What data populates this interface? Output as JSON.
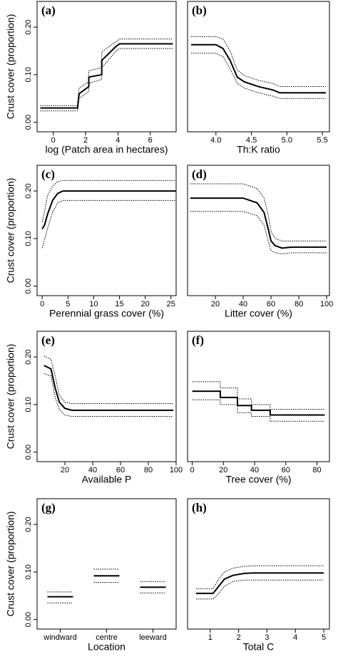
{
  "chart_data": [
    {
      "type": "line",
      "title": "(a)",
      "xlabel": "log (Patch area in hectares)",
      "ylabel": "Crust cover (proportion)",
      "xlim": [
        -1,
        7.6
      ],
      "xticks": [
        0,
        2,
        4,
        6
      ],
      "ylim": [
        -0.02,
        0.254
      ],
      "yticks": [
        {
          "value": 0,
          "label": "0.00"
        },
        {
          "value": 0.1,
          "label": "0.10"
        },
        {
          "value": 0.2,
          "label": "0.20"
        }
      ],
      "x": [
        -0.8,
        1.5,
        1.6,
        2.2,
        2.2,
        3.0,
        3.0,
        3.9,
        4.1,
        7.4
      ],
      "series": [
        {
          "color": "#000000",
          "style": "solid",
          "values": [
            0.03,
            0.03,
            0.06,
            0.075,
            0.095,
            0.1,
            0.13,
            0.16,
            0.165,
            0.165
          ]
        },
        {
          "color": "#000000",
          "style": "dotted",
          "values": [
            0.035,
            0.035,
            0.072,
            0.085,
            0.108,
            0.115,
            0.148,
            0.17,
            0.175,
            0.175
          ]
        },
        {
          "color": "#000000",
          "style": "dotted",
          "values": [
            0.024,
            0.024,
            0.05,
            0.065,
            0.082,
            0.09,
            0.115,
            0.15,
            0.155,
            0.155
          ]
        }
      ]
    },
    {
      "type": "line",
      "title": "(b)",
      "xlabel": "Th:K ratio",
      "xlim": [
        3.6,
        5.6
      ],
      "xticks": [
        {
          "value": 4,
          "label": "4.0"
        },
        4.5,
        {
          "value": 5,
          "label": "5.0"
        },
        5.5
      ],
      "ylim": [
        -0.02,
        0.254
      ],
      "x": [
        3.65,
        4.0,
        4.1,
        4.2,
        4.3,
        4.4,
        4.6,
        4.8,
        4.9,
        5.55
      ],
      "series": [
        {
          "color": "#000000",
          "style": "solid",
          "values": [
            0.163,
            0.163,
            0.155,
            0.13,
            0.095,
            0.085,
            0.075,
            0.068,
            0.062,
            0.062
          ]
        },
        {
          "color": "#000000",
          "style": "dotted",
          "values": [
            0.18,
            0.18,
            0.175,
            0.15,
            0.11,
            0.098,
            0.088,
            0.082,
            0.075,
            0.075
          ]
        },
        {
          "color": "#000000",
          "style": "dotted",
          "values": [
            0.145,
            0.145,
            0.138,
            0.112,
            0.082,
            0.072,
            0.062,
            0.055,
            0.05,
            0.05
          ]
        }
      ]
    },
    {
      "type": "line",
      "title": "(c)",
      "xlabel": "Perennial grass cover (%)",
      "ylabel": "Crust cover (proportion)",
      "xlim": [
        -1,
        26
      ],
      "xticks": [
        0,
        5,
        10,
        15,
        20,
        25
      ],
      "ylim": [
        -0.02,
        0.254
      ],
      "yticks": [
        {
          "value": 0,
          "label": "0.00"
        },
        {
          "value": 0.1,
          "label": "0.10"
        },
        {
          "value": 0.2,
          "label": "0.20"
        }
      ],
      "x": [
        0,
        0.5,
        1,
        2,
        3,
        4,
        5,
        26
      ],
      "series": [
        {
          "color": "#000000",
          "style": "solid",
          "values": [
            0.12,
            0.13,
            0.15,
            0.18,
            0.195,
            0.2,
            0.2,
            0.2
          ]
        },
        {
          "color": "#000000",
          "style": "dotted",
          "values": [
            0.135,
            0.16,
            0.19,
            0.21,
            0.22,
            0.222,
            0.222,
            0.222
          ]
        },
        {
          "color": "#000000",
          "style": "dotted",
          "values": [
            0.08,
            0.1,
            0.12,
            0.155,
            0.175,
            0.18,
            0.18,
            0.18
          ]
        }
      ]
    },
    {
      "type": "line",
      "title": "(d)",
      "xlabel": "Litter cover (%)",
      "xlim": [
        0,
        102
      ],
      "xticks": [
        20,
        40,
        60,
        80,
        100
      ],
      "ylim": [
        -0.02,
        0.254
      ],
      "x": [
        2,
        40,
        50,
        55,
        58,
        60,
        63,
        68,
        75,
        100
      ],
      "series": [
        {
          "color": "#000000",
          "style": "solid",
          "values": [
            0.185,
            0.185,
            0.175,
            0.155,
            0.12,
            0.095,
            0.085,
            0.08,
            0.082,
            0.082
          ]
        },
        {
          "color": "#000000",
          "style": "dotted",
          "values": [
            0.215,
            0.215,
            0.205,
            0.185,
            0.15,
            0.115,
            0.1,
            0.095,
            0.095,
            0.095
          ]
        },
        {
          "color": "#000000",
          "style": "dotted",
          "values": [
            0.157,
            0.157,
            0.148,
            0.128,
            0.095,
            0.075,
            0.07,
            0.068,
            0.07,
            0.07
          ]
        }
      ]
    },
    {
      "type": "line",
      "title": "(e)",
      "xlabel": "Available P",
      "ylabel": "Crust cover (proportion)",
      "xlim": [
        0,
        100
      ],
      "xticks": [
        20,
        40,
        60,
        80,
        100
      ],
      "ylim": [
        -0.02,
        0.254
      ],
      "yticks": [
        {
          "value": 0,
          "label": "0.00"
        },
        {
          "value": 0.1,
          "label": "0.10"
        },
        {
          "value": 0.2,
          "label": "0.20"
        }
      ],
      "x": [
        5,
        10,
        13,
        16,
        20,
        25,
        98
      ],
      "series": [
        {
          "color": "#000000",
          "style": "solid",
          "values": [
            0.182,
            0.175,
            0.135,
            0.105,
            0.092,
            0.088,
            0.088
          ]
        },
        {
          "color": "#000000",
          "style": "dotted",
          "values": [
            0.202,
            0.195,
            0.16,
            0.12,
            0.105,
            0.102,
            0.102
          ]
        },
        {
          "color": "#000000",
          "style": "dotted",
          "values": [
            0.165,
            0.16,
            0.115,
            0.09,
            0.078,
            0.075,
            0.075
          ]
        }
      ]
    },
    {
      "type": "line",
      "title": "(f)",
      "xlabel": "Tree cover (%)",
      "xlim": [
        -3,
        88
      ],
      "xticks": [
        0,
        20,
        40,
        60,
        80
      ],
      "ylim": [
        -0.02,
        0.254
      ],
      "x": [
        0,
        18,
        18,
        29,
        29,
        38,
        38,
        50,
        50,
        85
      ],
      "series": [
        {
          "color": "#000000",
          "style": "solid",
          "values": [
            0.128,
            0.128,
            0.115,
            0.115,
            0.098,
            0.098,
            0.088,
            0.088,
            0.078,
            0.078
          ]
        },
        {
          "color": "#000000",
          "style": "dotted",
          "values": [
            0.148,
            0.148,
            0.135,
            0.135,
            0.112,
            0.112,
            0.1,
            0.1,
            0.09,
            0.09
          ]
        },
        {
          "color": "#000000",
          "style": "dotted",
          "values": [
            0.11,
            0.11,
            0.1,
            0.1,
            0.083,
            0.083,
            0.075,
            0.075,
            0.065,
            0.065
          ]
        }
      ]
    },
    {
      "type": "segment",
      "title": "(g)",
      "xlabel": "Location",
      "ylabel": "Crust cover (proportion)",
      "categories": [
        "windward",
        "centre",
        "leeward"
      ],
      "ylim": [
        -0.02,
        0.254
      ],
      "yticks": [
        {
          "value": 0,
          "label": "0.00"
        },
        {
          "value": 0.1,
          "label": "0.10"
        },
        {
          "value": 0.2,
          "label": "0.20"
        }
      ],
      "series": [
        {
          "color": "#000000",
          "style": "solid",
          "values": [
            0.048,
            0.092,
            0.068
          ]
        },
        {
          "color": "#000000",
          "style": "dotted",
          "values": [
            0.058,
            0.106,
            0.08
          ]
        },
        {
          "color": "#000000",
          "style": "dotted",
          "values": [
            0.035,
            0.078,
            0.056
          ]
        }
      ]
    },
    {
      "type": "line",
      "title": "(h)",
      "xlabel": "Total C",
      "xlim": [
        0.2,
        5.2
      ],
      "xticks": [
        1,
        2,
        3,
        4,
        5
      ],
      "ylim": [
        -0.02,
        0.254
      ],
      "x": [
        0.5,
        1.1,
        1.3,
        1.5,
        1.8,
        2.2,
        2.5,
        5
      ],
      "series": [
        {
          "color": "#000000",
          "style": "solid",
          "values": [
            0.055,
            0.055,
            0.07,
            0.085,
            0.093,
            0.097,
            0.098,
            0.098
          ]
        },
        {
          "color": "#000000",
          "style": "dotted",
          "values": [
            0.065,
            0.065,
            0.085,
            0.1,
            0.108,
            0.112,
            0.113,
            0.113
          ]
        },
        {
          "color": "#000000",
          "style": "dotted",
          "values": [
            0.043,
            0.043,
            0.055,
            0.07,
            0.08,
            0.083,
            0.083,
            0.083
          ]
        }
      ]
    }
  ]
}
